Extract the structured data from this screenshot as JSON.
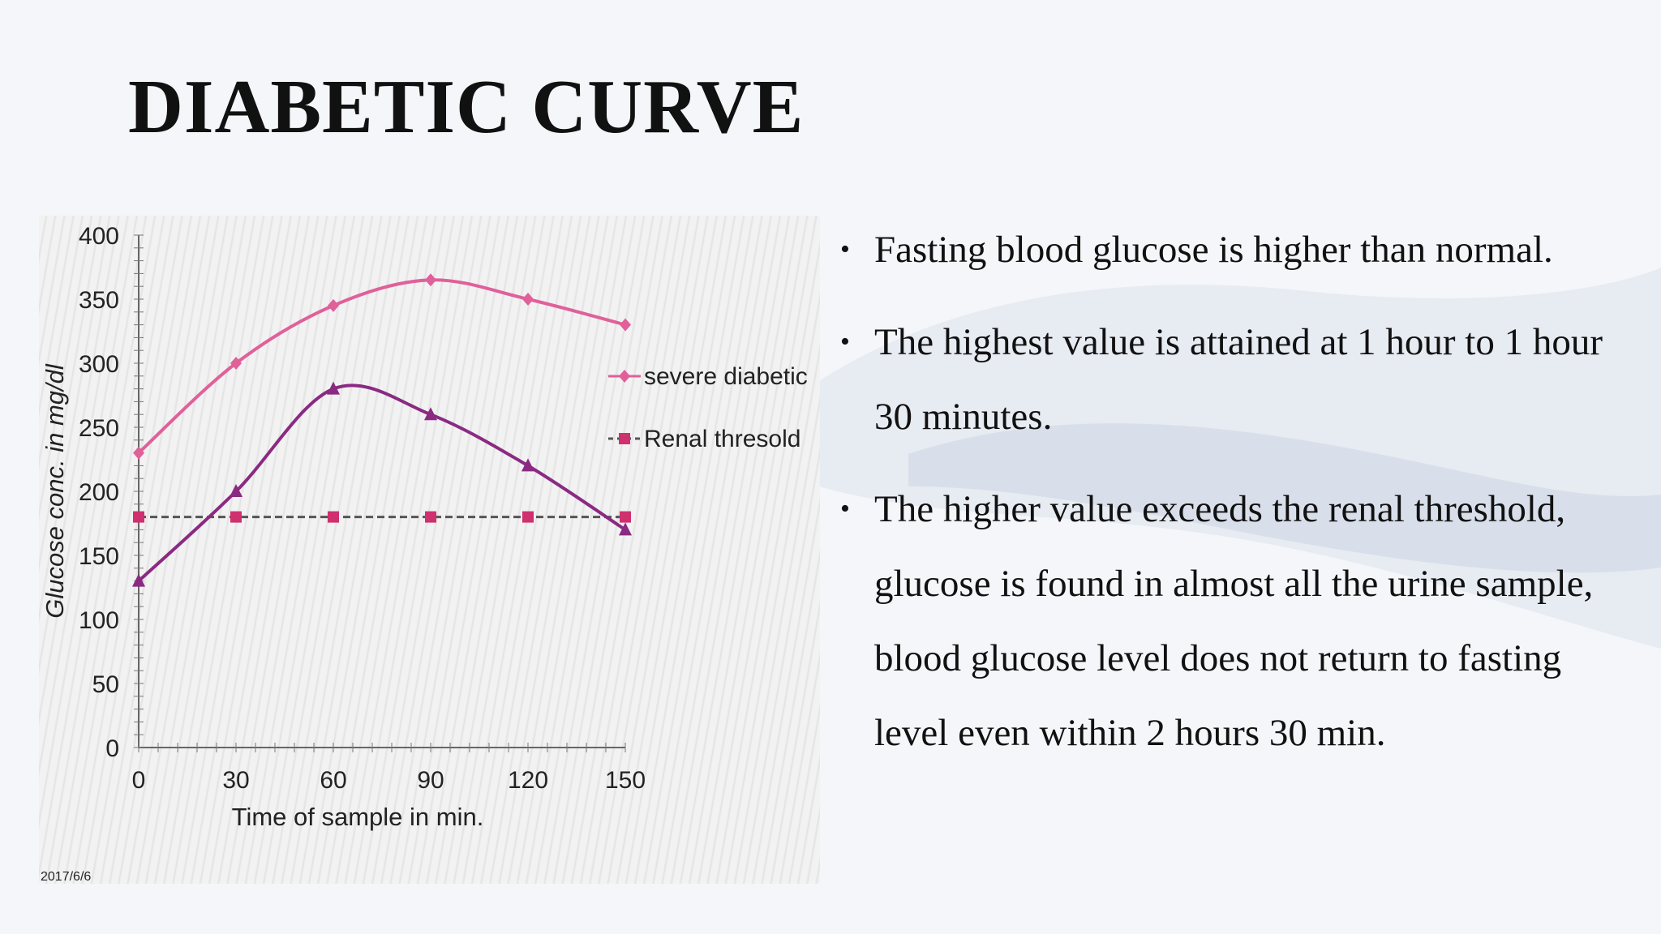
{
  "slide": {
    "title": "DIABETIC CURVE",
    "bullets": [
      " Fasting blood glucose is higher than normal.",
      "The highest value is attained at 1 hour to 1 hour 30 minutes.",
      "The higher value exceeds the renal threshold, glucose is found in almost all the urine sample, blood glucose level does not return to fasting level even within 2 hours 30 min."
    ],
    "bullet_glyph": "•"
  },
  "chart_data": {
    "type": "line",
    "x": [
      0,
      30,
      60,
      90,
      120,
      150
    ],
    "xlabel": "Time of sample in min.",
    "ylabel": "Glucose conc. in mg/dl",
    "xlim": [
      0,
      150
    ],
    "ylim": [
      0,
      400
    ],
    "x_ticks": [
      "0",
      "30",
      "60",
      "90",
      "120",
      "150"
    ],
    "y_ticks": [
      "0",
      "50",
      "100",
      "150",
      "200",
      "250",
      "300",
      "350",
      "400"
    ],
    "grid": false,
    "legend_position": "right",
    "footer_note": "2017/6/6",
    "series": [
      {
        "name": "severe diabetic",
        "values": [
          230,
          300,
          345,
          365,
          350,
          330
        ],
        "color": "#e0609a",
        "marker": "diamond",
        "style": "solid"
      },
      {
        "name": "Renal thresold",
        "values": [
          180,
          180,
          180,
          180,
          180,
          180
        ],
        "color": "#d0306e",
        "marker": "square",
        "style": "dashed",
        "line_color": "#555555"
      },
      {
        "values": [
          130,
          200,
          280,
          260,
          220,
          170
        ],
        "color": "#8a2a82",
        "marker": "triangle",
        "style": "solid"
      }
    ]
  },
  "colors": {
    "background": "#f4f6f9",
    "title": "#111111"
  }
}
